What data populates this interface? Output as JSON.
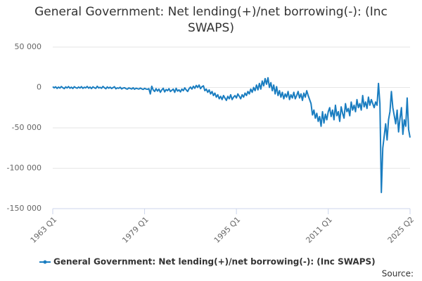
{
  "chart_data": {
    "type": "line",
    "title": "General Government: Net lending(+)/net borrowing(-): (Inc SWAPS)",
    "source_label": "Source:",
    "categories": [
      "1963 Q1",
      null,
      null,
      null,
      null,
      null,
      null,
      null,
      null,
      null,
      null,
      null,
      null,
      null,
      null,
      null,
      null,
      null,
      null,
      null,
      null,
      null,
      null,
      null,
      null,
      null,
      null,
      null,
      null,
      null,
      null,
      null,
      null,
      null,
      null,
      null,
      null,
      null,
      null,
      null,
      null,
      null,
      null,
      null,
      null,
      null,
      null,
      null,
      null,
      null,
      null,
      null,
      null,
      null,
      null,
      null,
      null,
      null,
      null,
      null,
      null,
      null,
      null,
      null,
      "1979 Q1",
      null,
      null,
      null,
      null,
      null,
      null,
      null,
      null,
      null,
      null,
      null,
      null,
      null,
      null,
      null,
      null,
      null,
      null,
      null,
      null,
      null,
      null,
      null,
      null,
      null,
      null,
      null,
      null,
      null,
      null,
      null,
      null,
      null,
      null,
      null,
      null,
      null,
      null,
      null,
      null,
      null,
      null,
      null,
      null,
      null,
      null,
      null,
      null,
      null,
      null,
      null,
      null,
      null,
      null,
      null,
      null,
      null,
      null,
      null,
      null,
      null,
      null,
      null,
      "1995 Q1",
      null,
      null,
      null,
      null,
      null,
      null,
      null,
      null,
      null,
      null,
      null,
      null,
      null,
      null,
      null,
      null,
      null,
      null,
      null,
      null,
      null,
      null,
      null,
      null,
      null,
      null,
      null,
      null,
      null,
      null,
      null,
      null,
      null,
      null,
      null,
      null,
      null,
      null,
      null,
      null,
      null,
      null,
      null,
      null,
      null,
      null,
      null,
      null,
      null,
      null,
      null,
      null,
      null,
      null,
      null,
      null,
      null,
      null,
      null,
      null,
      null,
      null,
      null,
      "2011 Q1",
      null,
      null,
      null,
      null,
      null,
      null,
      null,
      null,
      null,
      null,
      null,
      null,
      null,
      null,
      null,
      null,
      null,
      null,
      null,
      null,
      null,
      null,
      null,
      null,
      null,
      null,
      null,
      null,
      null,
      null,
      null,
      null,
      null,
      null,
      null,
      null,
      null,
      null,
      null,
      null,
      null,
      null,
      null,
      null,
      null,
      null,
      null,
      null,
      null,
      null,
      null,
      null,
      null,
      null,
      null,
      null,
      "2025 Q2"
    ],
    "series": [
      {
        "name": "General Government: Net lending(+)/net borrowing(-): (Inc SWAPS)",
        "color": "#1a7dc0",
        "values": [
          1000,
          -500,
          800,
          -1200,
          500,
          -800,
          1200,
          -300,
          -1500,
          700,
          -600,
          1100,
          -900,
          400,
          -1300,
          900,
          -200,
          -1000,
          600,
          -700,
          1000,
          -1100,
          300,
          -500,
          1200,
          -900,
          500,
          -1400,
          800,
          -300,
          -1200,
          1500,
          -600,
          200,
          -1000,
          1300,
          -400,
          -1600,
          700,
          -900,
          400,
          -1300,
          -200,
          900,
          -1700,
          -500,
          -1100,
          300,
          -1800,
          -800,
          -300,
          -1500,
          -2100,
          -600,
          -1200,
          -1900,
          -400,
          -2200,
          -1000,
          -1500,
          -2000,
          -800,
          -1700,
          -2400,
          -1100,
          -1900,
          -2300,
          -1500,
          -8000,
          1500,
          -3000,
          -5000,
          -1500,
          -4500,
          -2000,
          -6000,
          -3000,
          -1000,
          -5500,
          -2500,
          -4000,
          -1500,
          -5000,
          -3500,
          -2000,
          -6000,
          -1000,
          -4500,
          -3000,
          -5500,
          -2000,
          -4000,
          -500,
          -3000,
          -5000,
          -1500,
          500,
          -2000,
          1500,
          -1000,
          2500,
          0,
          3000,
          -1500,
          1000,
          2000,
          -4000,
          -2000,
          -6000,
          -3000,
          -8000,
          -5000,
          -10000,
          -7000,
          -12000,
          -9000,
          -14000,
          -11000,
          -15000,
          -10000,
          -13000,
          -16000,
          -11000,
          -14000,
          -9000,
          -15000,
          -12000,
          -10000,
          -13000,
          -8000,
          -11000,
          -14000,
          -9000,
          -12000,
          -7000,
          -10000,
          -5000,
          -8000,
          -2000,
          -6000,
          0,
          -4000,
          3000,
          -3000,
          5000,
          -2000,
          8000,
          2000,
          11000,
          4000,
          12000,
          0,
          6000,
          -4000,
          3000,
          -8000,
          1000,
          -10000,
          -4000,
          -12000,
          -6000,
          -14000,
          -8000,
          -12000,
          -5000,
          -15000,
          -9000,
          -13000,
          -6000,
          -14000,
          -10000,
          -5000,
          -13000,
          -8000,
          -16000,
          -7000,
          -12000,
          -4000,
          -10000,
          -15000,
          -20000,
          -34000,
          -28000,
          -38000,
          -32000,
          -42000,
          -36000,
          -48000,
          -30000,
          -44000,
          -33000,
          -40000,
          -30000,
          -25000,
          -36000,
          -28000,
          -40000,
          -22000,
          -35000,
          -30000,
          -42000,
          -24000,
          -32000,
          -38000,
          -20000,
          -30000,
          -26000,
          -35000,
          -18000,
          -28000,
          -22000,
          -30000,
          -15000,
          -25000,
          -20000,
          -28000,
          -10000,
          -24000,
          -18000,
          -26000,
          -12000,
          -22000,
          -15000,
          -20000,
          -25000,
          -18000,
          -22000,
          5000,
          -20000,
          -130000,
          -75000,
          -60000,
          -45000,
          -65000,
          -40000,
          -30000,
          -5000,
          -25000,
          -35000,
          -45000,
          -28000,
          -55000,
          -38000,
          -25000,
          -58000,
          -40000,
          -48000,
          -13000,
          -52000,
          -62000
        ]
      }
    ],
    "ylim": [
      -150000,
      50000
    ],
    "yticks": [
      {
        "value": -150000,
        "label": "-150 000"
      },
      {
        "value": -100000,
        "label": "-100 000"
      },
      {
        "value": -50000,
        "label": "-50 000"
      },
      0,
      {
        "value": 50000,
        "label": "50 000"
      }
    ],
    "grid": true
  }
}
